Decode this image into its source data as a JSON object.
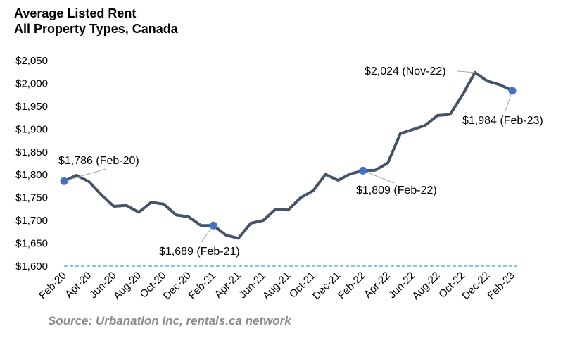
{
  "title_line1": "Average Listed Rent",
  "title_line2": "All Property Types, Canada",
  "source": "Source: Urbanation Inc, rentals.ca network",
  "colors": {
    "line": "#44546a",
    "marker": "#4472c4",
    "baseline": "#5fb7c9",
    "text": "#000000"
  },
  "chart_data": {
    "type": "line",
    "title": "Average Listed Rent All Property Types, Canada",
    "xlabel": "",
    "ylabel": "",
    "ylim": [
      1600,
      2050
    ],
    "yticks": [
      1600,
      1650,
      1700,
      1750,
      1800,
      1850,
      1900,
      1950,
      2000,
      2050
    ],
    "ytick_labels": [
      "$1,600",
      "$1,650",
      "$1,700",
      "$1,750",
      "$1,800",
      "$1,850",
      "$1,900",
      "$1,950",
      "$2,000",
      "$2,050"
    ],
    "x": [
      "Feb-20",
      "Mar-20",
      "Apr-20",
      "May-20",
      "Jun-20",
      "Jul-20",
      "Aug-20",
      "Sep-20",
      "Oct-20",
      "Nov-20",
      "Dec-20",
      "Jan-21",
      "Feb-21",
      "Mar-21",
      "Apr-21",
      "May-21",
      "Jun-21",
      "Jul-21",
      "Aug-21",
      "Sep-21",
      "Oct-21",
      "Nov-21",
      "Dec-21",
      "Jan-22",
      "Feb-22",
      "Mar-22",
      "Apr-22",
      "May-22",
      "Jun-22",
      "Jul-22",
      "Aug-22",
      "Sep-22",
      "Oct-22",
      "Nov-22",
      "Dec-22",
      "Jan-23",
      "Feb-23"
    ],
    "xtick_labels": [
      "Feb-20",
      "Apr-20",
      "Jun-20",
      "Aug-20",
      "Oct-20",
      "Dec-20",
      "Feb-21",
      "Apr-21",
      "Jun-21",
      "Aug-21",
      "Oct-21",
      "Dec-21",
      "Feb-22",
      "Apr-22",
      "Jun-22",
      "Aug-22",
      "Oct-22",
      "Dec-22",
      "Feb-23"
    ],
    "series": [
      {
        "values": [
          1786,
          1799,
          1785,
          1756,
          1731,
          1733,
          1718,
          1740,
          1736,
          1712,
          1708,
          1689,
          1689,
          1668,
          1661,
          1694,
          1700,
          1725,
          1723,
          1750,
          1765,
          1801,
          1788,
          1802,
          1809,
          1810,
          1826,
          1890,
          1899,
          1908,
          1930,
          1932,
          1975,
          2024,
          2005,
          1997,
          1984
        ]
      }
    ],
    "markers": [
      {
        "x": "Feb-20",
        "value": 1786,
        "label": "$1,786 (Feb-20)"
      },
      {
        "x": "Feb-21",
        "value": 1689,
        "label": "$1,689 (Feb-21)"
      },
      {
        "x": "Feb-22",
        "value": 1809,
        "label": "$1,809 (Feb-22)"
      },
      {
        "x": "Feb-23",
        "value": 1984,
        "label": "$1,984 (Feb-23)"
      }
    ],
    "annotations": [
      {
        "x": "Feb-20",
        "value": 1786,
        "label": "$1,786 (Feb-20)"
      },
      {
        "x": "Feb-21",
        "value": 1689,
        "label": "$1,689 (Feb-21)"
      },
      {
        "x": "Feb-22",
        "value": 1809,
        "label": "$1,809 (Feb-22)"
      },
      {
        "x": "Nov-22",
        "value": 2024,
        "label": "$2,024 (Nov-22)"
      },
      {
        "x": "Feb-23",
        "value": 1984,
        "label": "$1,984 (Feb-23)"
      }
    ],
    "grid": false,
    "legend": "none"
  }
}
